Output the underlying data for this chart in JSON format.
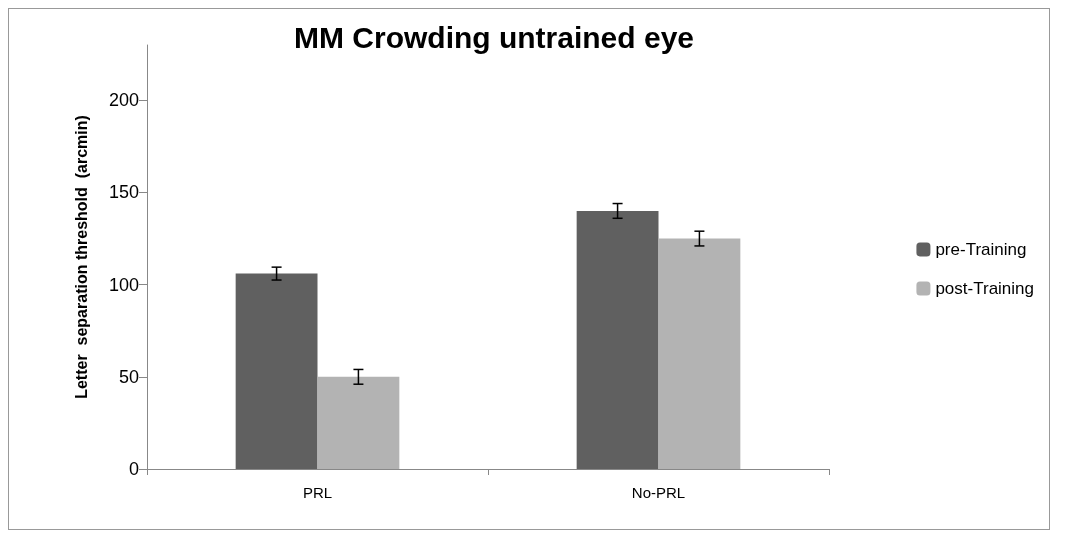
{
  "chart_data": {
    "type": "bar",
    "title": "MM Crowding untrained eye",
    "ylabel": "Letter  separation threshold  (arcmin)",
    "categories": [
      "PRL",
      "No-PRL"
    ],
    "series": [
      {
        "name": "pre-Training",
        "color": "#606060",
        "values": [
          106,
          140
        ],
        "errors": [
          3.5,
          4
        ]
      },
      {
        "name": "post-Training",
        "color": "#b3b3b3",
        "values": [
          50,
          125
        ],
        "errors": [
          4,
          4
        ]
      }
    ],
    "ylim": [
      0,
      230
    ],
    "yticks": [
      0,
      50,
      100,
      150,
      200
    ],
    "grid": false,
    "legend": "right"
  }
}
